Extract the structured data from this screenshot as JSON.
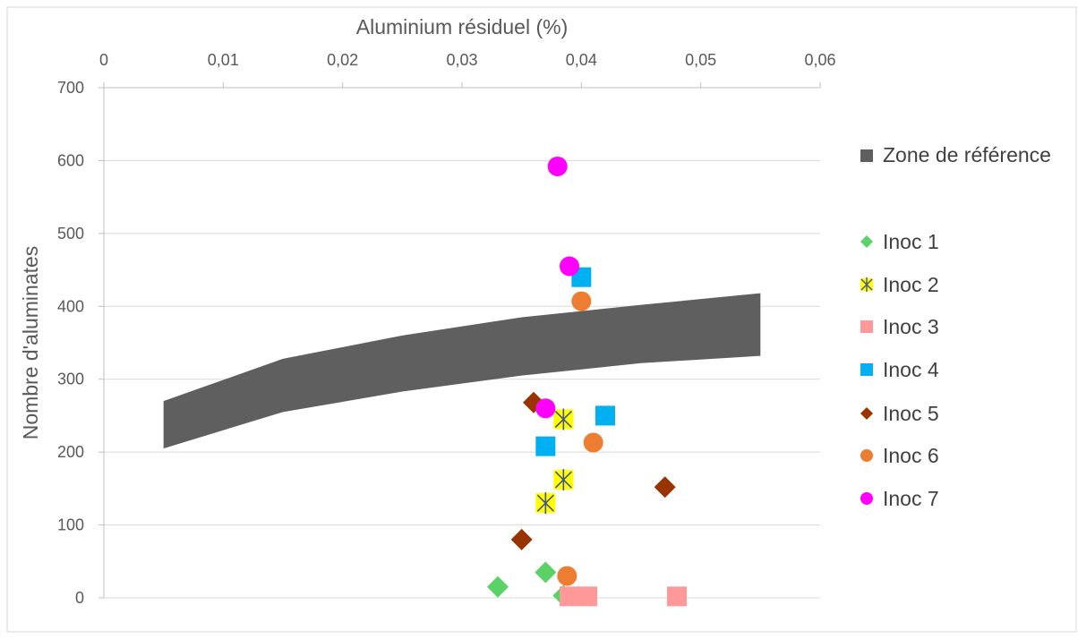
{
  "chart_data": {
    "type": "scatter",
    "xlabel": "Aluminium résiduel (%)",
    "ylabel": "Nombre d'aluminates",
    "xlim": [
      0,
      0.06
    ],
    "ylim": [
      0,
      700
    ],
    "x_ticks": [
      "0",
      "0,01",
      "0,02",
      "0,03",
      "0,04",
      "0,05",
      "0,06"
    ],
    "y_ticks": [
      "0",
      "100",
      "200",
      "300",
      "400",
      "500",
      "600",
      "700"
    ],
    "x_axis_position": "top",
    "grid": "horizontal",
    "legend_position": "right",
    "reference_zone": {
      "name": "Zone de référence",
      "color": "#5f5f5f",
      "upper": [
        [
          0.005,
          270
        ],
        [
          0.015,
          328
        ],
        [
          0.025,
          360
        ],
        [
          0.035,
          385
        ],
        [
          0.045,
          402
        ],
        [
          0.055,
          418
        ]
      ],
      "lower": [
        [
          0.005,
          205
        ],
        [
          0.015,
          255
        ],
        [
          0.025,
          283
        ],
        [
          0.035,
          305
        ],
        [
          0.045,
          322
        ],
        [
          0.055,
          332
        ]
      ]
    },
    "series": [
      {
        "name": "Inoc 1",
        "marker": "diamond",
        "color": "#5ad267",
        "points": [
          [
            0.033,
            15
          ],
          [
            0.037,
            35
          ],
          [
            0.0385,
            3
          ]
        ]
      },
      {
        "name": "Inoc 2",
        "marker": "asterisk-square",
        "color": "#ffff00",
        "points": [
          [
            0.037,
            130
          ],
          [
            0.0385,
            162
          ],
          [
            0.0385,
            245
          ]
        ]
      },
      {
        "name": "Inoc 3",
        "marker": "square",
        "color": "#ff9999",
        "points": [
          [
            0.039,
            2
          ],
          [
            0.0405,
            2
          ],
          [
            0.048,
            2
          ]
        ]
      },
      {
        "name": "Inoc 4",
        "marker": "square",
        "color": "#00b0f0",
        "points": [
          [
            0.037,
            208
          ],
          [
            0.04,
            440
          ],
          [
            0.042,
            250
          ]
        ]
      },
      {
        "name": "Inoc 5",
        "marker": "diamond",
        "color": "#993300",
        "points": [
          [
            0.035,
            80
          ],
          [
            0.036,
            268
          ],
          [
            0.047,
            152
          ]
        ]
      },
      {
        "name": "Inoc 6",
        "marker": "circle",
        "color": "#ed7d31",
        "points": [
          [
            0.0388,
            30
          ],
          [
            0.041,
            213
          ],
          [
            0.04,
            407
          ]
        ]
      },
      {
        "name": "Inoc 7",
        "marker": "circle",
        "color": "#ff00ff",
        "points": [
          [
            0.037,
            260
          ],
          [
            0.039,
            455
          ],
          [
            0.038,
            592
          ]
        ]
      }
    ]
  }
}
